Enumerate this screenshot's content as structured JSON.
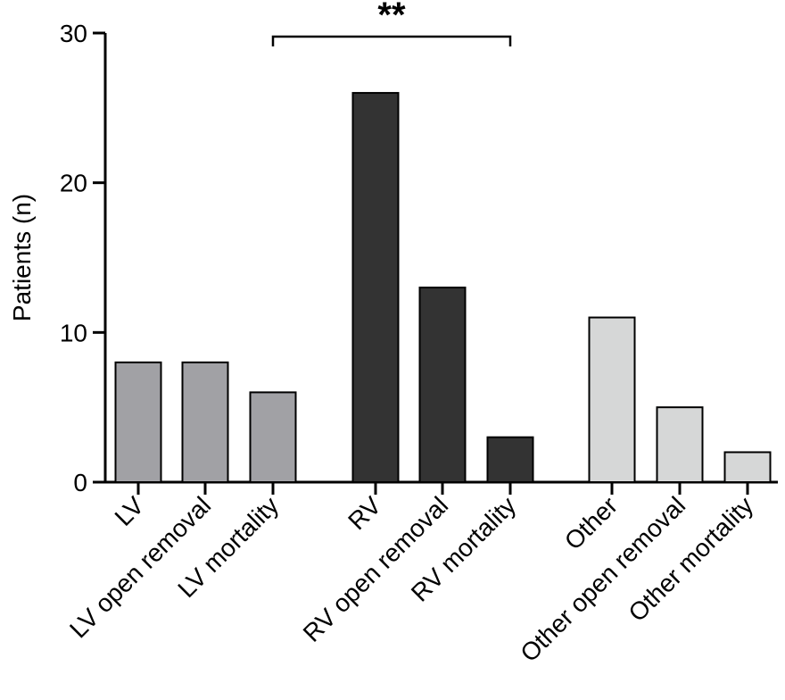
{
  "chart_data": {
    "type": "bar",
    "title": "",
    "xlabel": "",
    "ylabel": "Patients (n)",
    "ylim": [
      0,
      30
    ],
    "yticks": [
      0,
      10,
      20,
      30
    ],
    "grid": false,
    "categories": [
      "LV",
      "LV open removal",
      "LV mortality",
      "RV",
      "RV open removal",
      "RV mortality",
      "Other",
      "Other open removal",
      "Other mortality"
    ],
    "values": [
      8,
      8,
      6,
      26,
      13,
      3,
      11,
      5,
      2
    ],
    "groups": [
      {
        "categories": [
          "LV",
          "LV open removal",
          "LV mortality"
        ],
        "color": "#a1a1a5"
      },
      {
        "categories": [
          "RV",
          "RV open removal",
          "RV mortality"
        ],
        "color": "#333333"
      },
      {
        "categories": [
          "Other",
          "Other open removal",
          "Other mortality"
        ],
        "color": "#d6d7d7"
      }
    ],
    "annotations": [
      {
        "type": "significance-bracket",
        "from": "LV mortality",
        "to": "RV mortality",
        "label": "**"
      }
    ]
  }
}
